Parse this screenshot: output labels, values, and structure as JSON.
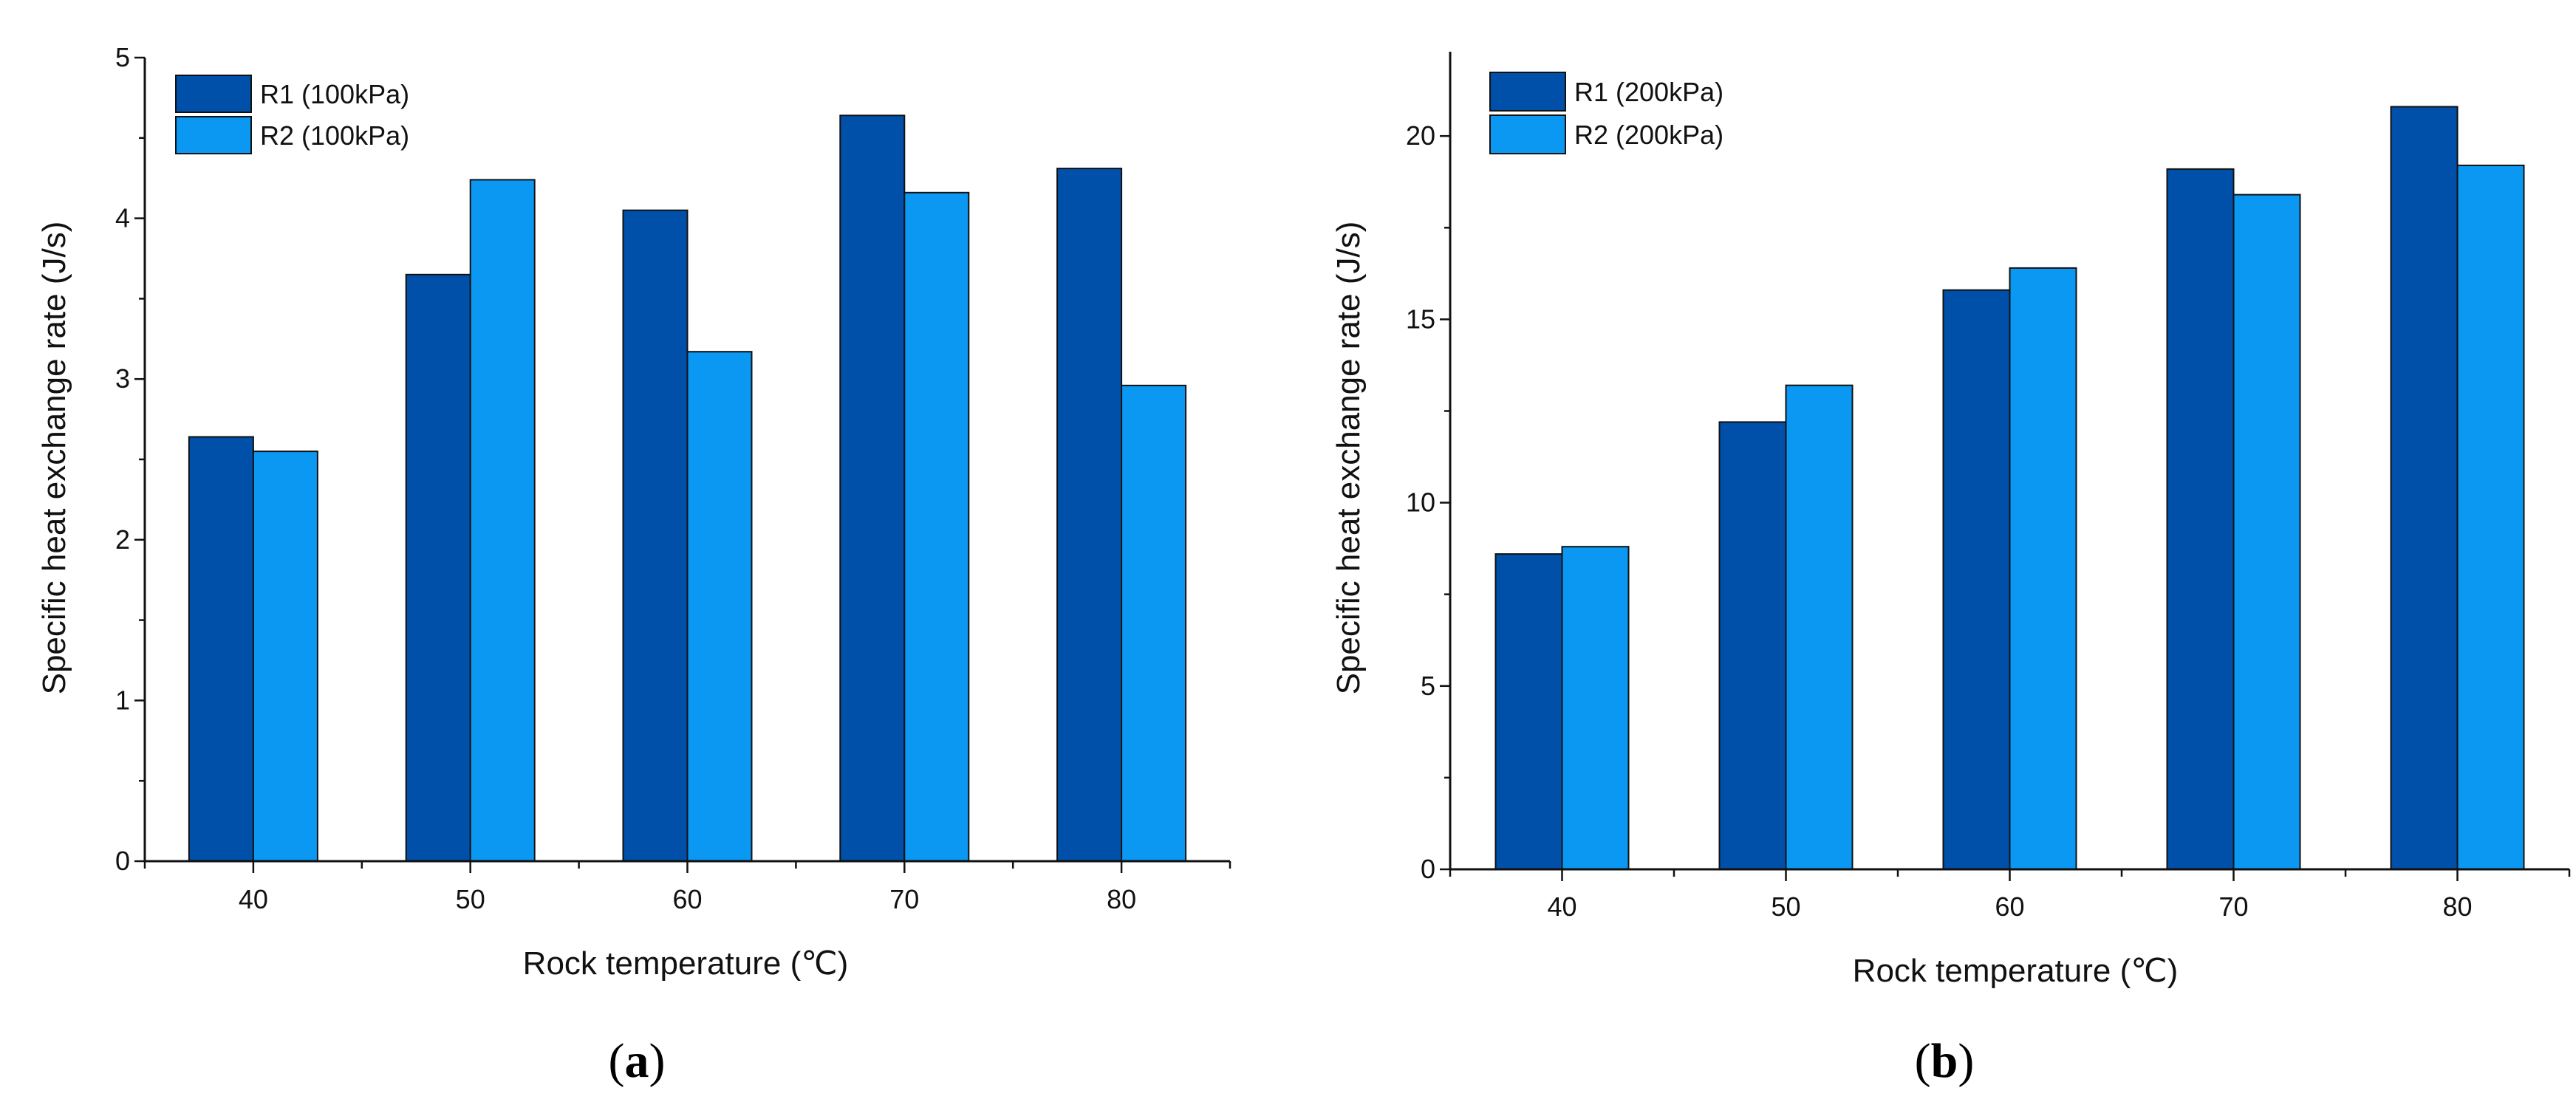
{
  "chart_data": [
    {
      "type": "bar",
      "panel_label": "a",
      "xlabel": "Rock temperature (℃)",
      "ylabel": "Specific heat exchange rate (J/s)",
      "categories": [
        "40",
        "50",
        "60",
        "70",
        "80"
      ],
      "ylim": [
        0,
        5
      ],
      "yticks": [
        "0",
        "1",
        "2",
        "3",
        "4",
        "5"
      ],
      "legend_position": "top-left",
      "series": [
        {
          "name": "R1 (100kPa)",
          "color": "#0050AA",
          "values": [
            2.64,
            3.65,
            4.05,
            4.64,
            4.31
          ]
        },
        {
          "name": "R2 (100kPa)",
          "color": "#0A98F2",
          "values": [
            2.55,
            4.24,
            3.17,
            4.16,
            2.96
          ]
        }
      ]
    },
    {
      "type": "bar",
      "panel_label": "b",
      "xlabel": "Rock temperature (℃)",
      "ylabel": "Specific heat exchange rate (J/s)",
      "categories": [
        "40",
        "50",
        "60",
        "70",
        "80"
      ],
      "ylim": [
        0,
        22.3
      ],
      "yticks": [
        "0",
        "5",
        "10",
        "15",
        "20"
      ],
      "legend_position": "top-left",
      "series": [
        {
          "name": "R1 (200kPa)",
          "color": "#0050AA",
          "values": [
            8.6,
            12.2,
            15.8,
            19.1,
            20.8
          ]
        },
        {
          "name": "R2 (200kPa)",
          "color": "#0A98F2",
          "values": [
            8.8,
            13.2,
            16.4,
            18.4,
            19.2
          ]
        }
      ]
    }
  ]
}
